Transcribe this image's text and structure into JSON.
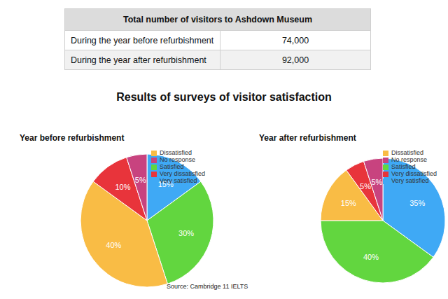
{
  "table": {
    "title": "Total number of visitors to Ashdown Museum",
    "rows": [
      [
        "During the year before refurbishment",
        "74,000"
      ],
      [
        "During the year after refurbishment",
        "92,000"
      ]
    ]
  },
  "heading": "Results of surveys of visitor satisfaction",
  "source": "Source: Cambridge 11 IELTS",
  "chart_data": [
    {
      "type": "pie",
      "title": "Year before refurbishment",
      "categories": [
        "Very satisfied",
        "Satisfied",
        "Dissatisfied",
        "Very dissatisfied",
        "No response"
      ],
      "values": [
        15,
        30,
        40,
        10,
        5
      ],
      "value_labels": [
        "15%",
        "30%",
        "40%",
        "10%",
        "5%"
      ],
      "colors": [
        "#3fa9f5",
        "#62d63f",
        "#f9bc45",
        "#e8343b",
        "#c8437f"
      ],
      "data_labels": true,
      "legend": "top-right"
    },
    {
      "type": "pie",
      "title": "Year after refurbishment",
      "categories": [
        "Very satisfied",
        "Satisfied",
        "Dissatisfied",
        "Very dissatisfied",
        "No response"
      ],
      "values": [
        35,
        40,
        15,
        5,
        5
      ],
      "value_labels": [
        "35%",
        "40%",
        "15%",
        "5%",
        "5%"
      ],
      "colors": [
        "#3fa9f5",
        "#62d63f",
        "#f9bc45",
        "#e8343b",
        "#c8437f"
      ],
      "data_labels": true,
      "legend": "top-right"
    }
  ]
}
